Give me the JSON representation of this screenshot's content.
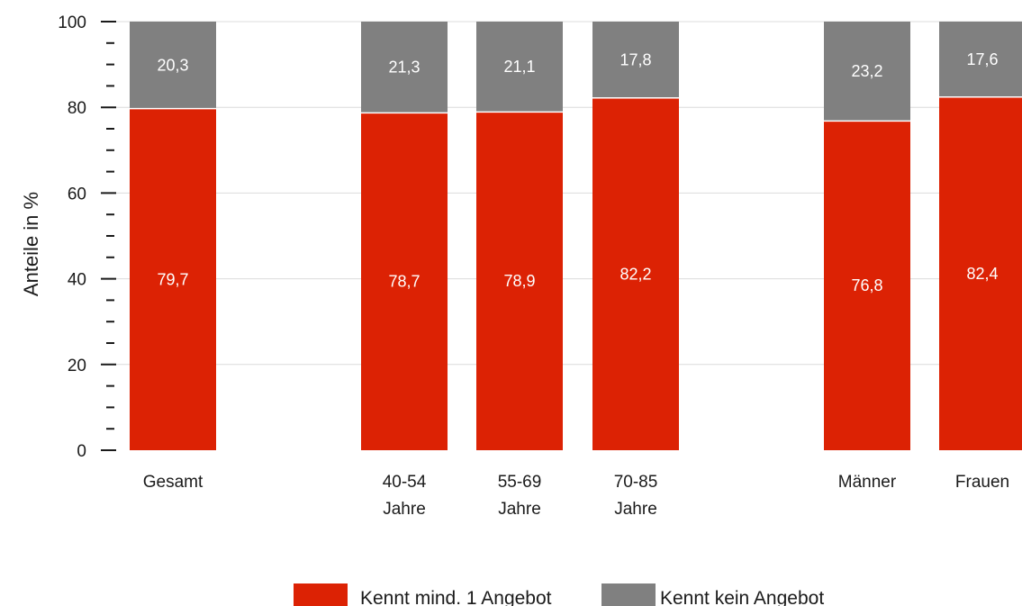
{
  "chart_data": {
    "type": "bar",
    "stacked": true,
    "ylabel": "Anteile in %",
    "ylim": [
      0,
      100
    ],
    "y_ticks": [
      "0",
      "20",
      "40",
      "60",
      "80",
      "100"
    ],
    "grid": true,
    "legend_position": "bottom",
    "categories": [
      {
        "lines": [
          "Gesamt"
        ],
        "group": 0
      },
      {
        "lines": [
          "40-54",
          "Jahre"
        ],
        "group": 1
      },
      {
        "lines": [
          "55-69",
          "Jahre"
        ],
        "group": 1
      },
      {
        "lines": [
          "70-85",
          "Jahre"
        ],
        "group": 1
      },
      {
        "lines": [
          "Männer"
        ],
        "group": 2
      },
      {
        "lines": [
          "Frauen"
        ],
        "group": 2
      }
    ],
    "series": [
      {
        "name": "Kennt mind. 1 Angebot",
        "color": "#dc2204",
        "values": [
          79.7,
          78.7,
          78.9,
          82.2,
          76.8,
          82.4
        ],
        "labels": [
          "79,7",
          "78,7",
          "78,9",
          "82,2",
          "76,8",
          "82,4"
        ]
      },
      {
        "name": "Kennt kein Angebot",
        "color": "#808080",
        "values": [
          20.3,
          21.3,
          21.1,
          17.8,
          23.2,
          17.6
        ],
        "labels": [
          "20,3",
          "21,3",
          "21,1",
          "17,8",
          "23,2",
          "17,6"
        ]
      }
    ]
  }
}
